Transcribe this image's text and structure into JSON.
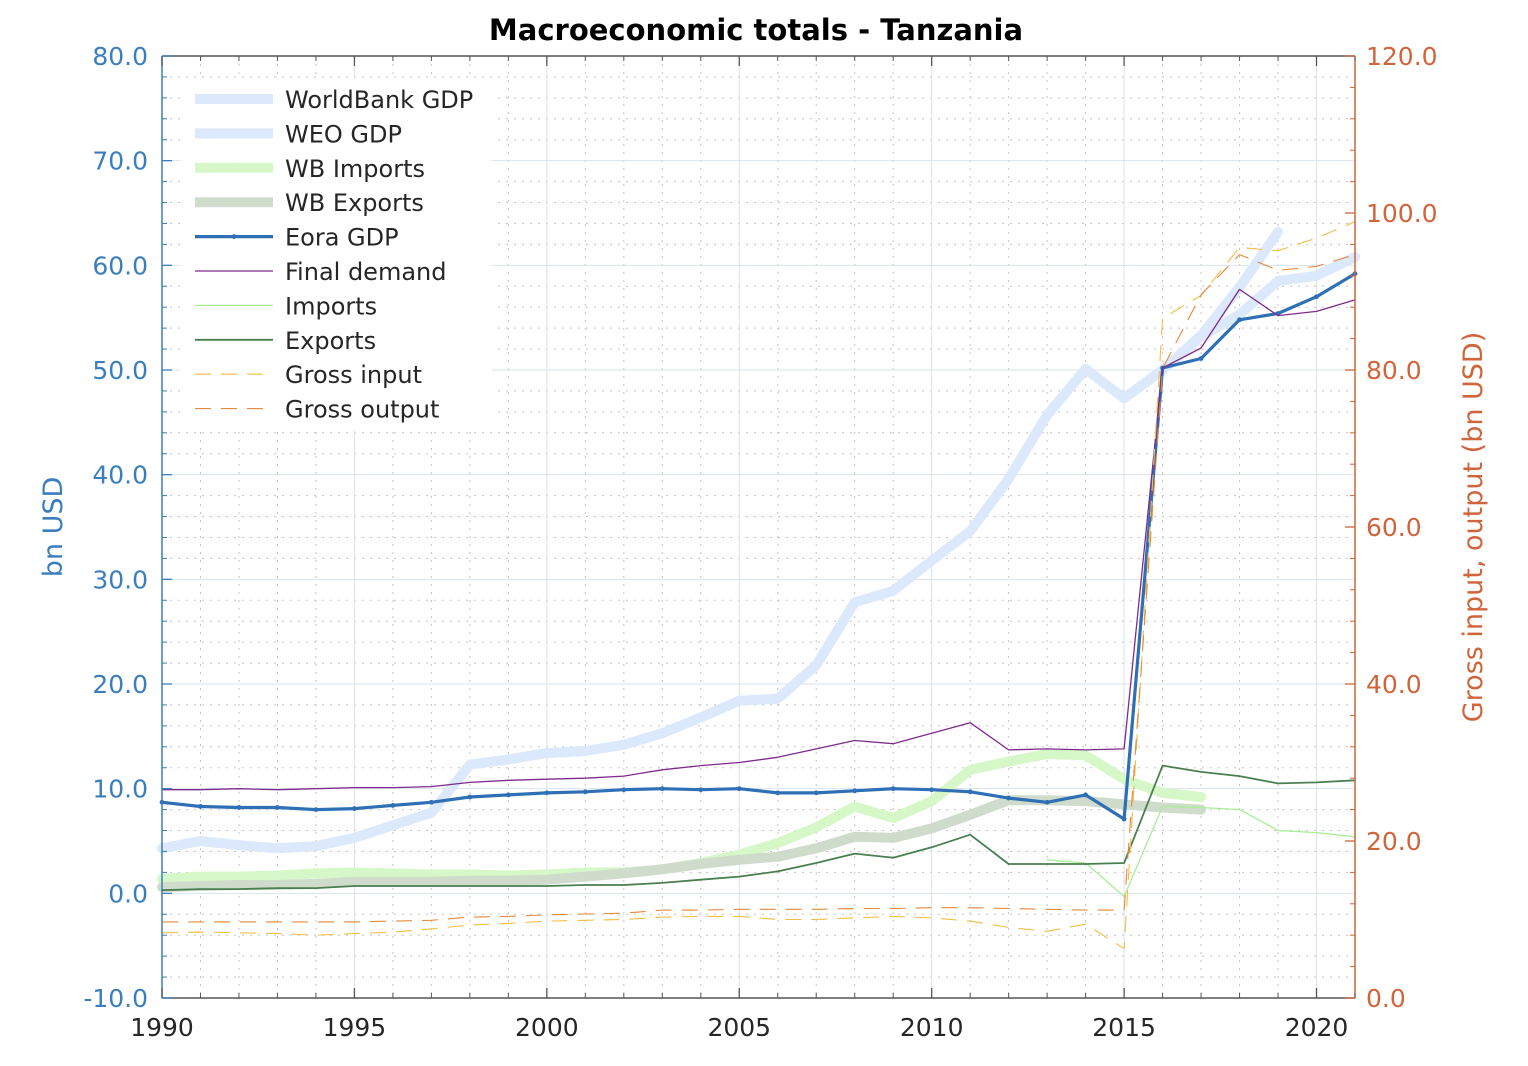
{
  "chart_data": {
    "type": "line",
    "title": "Macroeconomic totals - Tanzania",
    "xlabel": "",
    "ylabel": "bn USD",
    "y2label": "Gross input, output (bn USD)",
    "xlim": [
      1990,
      2021
    ],
    "ylim": [
      -10,
      80
    ],
    "y2lim": [
      0,
      120
    ],
    "x_ticks": [
      1990,
      1995,
      2000,
      2005,
      2010,
      2015,
      2020
    ],
    "x_tick_labels": [
      "1990",
      "1995",
      "2000",
      "2005",
      "2010",
      "2015",
      "2020"
    ],
    "y_ticks": [
      -10,
      0,
      10,
      20,
      30,
      40,
      50,
      60,
      70,
      80
    ],
    "y_tick_labels": [
      "-10.0",
      "0.0",
      "10.0",
      "20.0",
      "30.0",
      "40.0",
      "50.0",
      "60.0",
      "70.0",
      "80.0"
    ],
    "y2_ticks": [
      0,
      20,
      40,
      60,
      80,
      100,
      120
    ],
    "y2_tick_labels": [
      "0.0",
      "20.0",
      "40.0",
      "60.0",
      "80.0",
      "100.0",
      "120.0"
    ],
    "grid": true,
    "minor_grid": true,
    "legend_position": "top-left",
    "series": [
      {
        "name": "WorldBank GDP",
        "axis": "left",
        "color": "#dce8fb",
        "width": 10,
        "dash": "",
        "x": [
          1990,
          1991,
          1992,
          1993,
          1994,
          1995,
          1996,
          1997,
          1998,
          1999,
          2000,
          2001,
          2002,
          2003,
          2004,
          2005,
          2006,
          2007,
          2008,
          2009,
          2010,
          2011,
          2012,
          2013,
          2014,
          2015,
          2016,
          2017,
          2018,
          2019
        ],
        "y": [
          4.3,
          5.0,
          4.6,
          4.3,
          4.5,
          5.3,
          6.5,
          7.7,
          12.3,
          12.8,
          13.4,
          13.6,
          14.2,
          15.3,
          16.8,
          18.4,
          18.6,
          21.8,
          27.8,
          28.9,
          31.8,
          34.6,
          39.6,
          45.7,
          50.1,
          47.3,
          50.0,
          53.3,
          57.9,
          63.2
        ]
      },
      {
        "name": "WEO GDP",
        "axis": "left",
        "color": "#dce8fb",
        "width": 10,
        "dash": "",
        "x": [
          2015,
          2016,
          2017,
          2018,
          2019,
          2020,
          2021
        ],
        "y": [
          47.3,
          50.0,
          53.2,
          55.3,
          58.5,
          59.0,
          60.8
        ]
      },
      {
        "name": "WB Imports",
        "axis": "left",
        "color": "#d6f7c7",
        "width": 10,
        "dash": "",
        "x": [
          1990,
          1991,
          1992,
          1993,
          1994,
          1995,
          1996,
          1997,
          1998,
          1999,
          2000,
          2001,
          2002,
          2003,
          2004,
          2005,
          2006,
          2007,
          2008,
          2009,
          2010,
          2011,
          2012,
          2013,
          2014,
          2015,
          2016,
          2017
        ],
        "y": [
          1.4,
          1.6,
          1.6,
          1.7,
          1.9,
          2.0,
          1.9,
          1.8,
          1.8,
          1.7,
          1.8,
          2.0,
          2.0,
          2.3,
          2.9,
          3.7,
          4.8,
          6.3,
          8.3,
          7.2,
          8.8,
          11.8,
          12.6,
          13.3,
          13.2,
          10.9,
          9.6,
          9.2
        ]
      },
      {
        "name": "WB Exports",
        "axis": "left",
        "color": "#cfdccb",
        "width": 10,
        "dash": "",
        "x": [
          1990,
          1991,
          1992,
          1993,
          1994,
          1995,
          1996,
          1997,
          1998,
          1999,
          2000,
          2001,
          2002,
          2003,
          2004,
          2005,
          2006,
          2007,
          2008,
          2009,
          2010,
          2011,
          2012,
          2013,
          2014,
          2015,
          2016,
          2017
        ],
        "y": [
          0.6,
          0.7,
          0.8,
          0.8,
          0.9,
          1.1,
          1.1,
          1.1,
          1.2,
          1.2,
          1.3,
          1.6,
          1.9,
          2.3,
          2.8,
          3.2,
          3.5,
          4.3,
          5.4,
          5.3,
          6.2,
          7.5,
          8.9,
          8.9,
          8.8,
          8.5,
          8.2,
          8.0
        ]
      },
      {
        "name": "Eora GDP",
        "axis": "left",
        "color": "#2e6fb5",
        "width": 3.2,
        "dash": "",
        "markers": true,
        "x": [
          1990,
          1991,
          1992,
          1993,
          1994,
          1995,
          1996,
          1997,
          1998,
          1999,
          2000,
          2001,
          2002,
          2003,
          2004,
          2005,
          2006,
          2007,
          2008,
          2009,
          2010,
          2011,
          2012,
          2013,
          2014,
          2015,
          2016,
          2017,
          2018,
          2019,
          2020,
          2021
        ],
        "y": [
          8.7,
          8.3,
          8.2,
          8.2,
          8.0,
          8.1,
          8.4,
          8.7,
          9.2,
          9.4,
          9.6,
          9.7,
          9.9,
          10.0,
          9.9,
          10.0,
          9.6,
          9.6,
          9.8,
          10.0,
          9.9,
          9.7,
          9.1,
          8.7,
          9.4,
          7.1,
          50.2,
          51.1,
          54.8,
          55.4,
          57.0,
          59.2
        ]
      },
      {
        "name": "Final demand",
        "axis": "left",
        "color": "#7f2a8c",
        "width": 1.3,
        "dash": "",
        "x": [
          1990,
          1991,
          1992,
          1993,
          1994,
          1995,
          1996,
          1997,
          1998,
          1999,
          2000,
          2001,
          2002,
          2003,
          2004,
          2005,
          2006,
          2007,
          2008,
          2009,
          2010,
          2011,
          2012,
          2013,
          2014,
          2015,
          2016,
          2017,
          2018,
          2019,
          2020,
          2021
        ],
        "y": [
          9.9,
          9.9,
          10.0,
          9.9,
          10.0,
          10.1,
          10.1,
          10.2,
          10.6,
          10.8,
          10.9,
          11.0,
          11.2,
          11.8,
          12.2,
          12.5,
          13.0,
          13.8,
          14.6,
          14.3,
          15.3,
          16.3,
          13.7,
          13.8,
          13.7,
          13.8,
          50.2,
          52.1,
          57.7,
          55.2,
          55.6,
          56.7
        ]
      },
      {
        "name": "Imports",
        "axis": "left",
        "color": "#a8ee98",
        "width": 1.3,
        "dash": "",
        "x": [
          2013,
          2014,
          2015,
          2016,
          2017,
          2018,
          2019,
          2020,
          2021
        ],
        "y": [
          3.2,
          2.9,
          -0.3,
          8.3,
          8.2,
          8.0,
          6.0,
          5.8,
          5.4
        ]
      },
      {
        "name": "Exports",
        "axis": "left",
        "color": "#4a7f4f",
        "width": 1.8,
        "dash": "",
        "x": [
          1990,
          1991,
          1992,
          1993,
          1994,
          1995,
          1996,
          1997,
          1998,
          1999,
          2000,
          2001,
          2002,
          2003,
          2004,
          2005,
          2006,
          2007,
          2008,
          2009,
          2010,
          2011,
          2012,
          2013,
          2014,
          2015,
          2016,
          2017,
          2018,
          2019,
          2020,
          2021
        ],
        "y": [
          0.3,
          0.4,
          0.4,
          0.5,
          0.5,
          0.7,
          0.7,
          0.7,
          0.7,
          0.7,
          0.7,
          0.8,
          0.8,
          1.0,
          1.3,
          1.6,
          2.1,
          2.9,
          3.8,
          3.4,
          4.4,
          5.6,
          2.8,
          2.8,
          2.8,
          2.9,
          12.2,
          11.6,
          11.2,
          10.5,
          10.6,
          10.8
        ]
      },
      {
        "name": "Gross input",
        "axis": "right",
        "color": "#f2be45",
        "width": 1.1,
        "dash": "16 10",
        "x": [
          1990,
          1991,
          1992,
          1993,
          1994,
          1995,
          1996,
          1997,
          1998,
          1999,
          2000,
          2001,
          2002,
          2003,
          2004,
          2005,
          2006,
          2007,
          2008,
          2009,
          2010,
          2011,
          2012,
          2013,
          2014,
          2015,
          2016,
          2017,
          2018,
          2019,
          2020,
          2021
        ],
        "y": [
          8.3,
          8.4,
          8.3,
          8.2,
          8.0,
          8.2,
          8.4,
          8.8,
          9.3,
          9.5,
          9.8,
          9.9,
          10.0,
          10.3,
          10.4,
          10.4,
          10.0,
          10.0,
          10.2,
          10.4,
          10.2,
          9.8,
          9.0,
          8.5,
          9.4,
          6.3,
          86.6,
          89.5,
          95.6,
          95.2,
          96.8,
          98.9
        ]
      },
      {
        "name": "Gross output",
        "axis": "right",
        "color": "#e58a3a",
        "width": 1.1,
        "dash": "16 10",
        "x": [
          1990,
          1991,
          1992,
          1993,
          1994,
          1995,
          1996,
          1997,
          1998,
          1999,
          2000,
          2001,
          2002,
          2003,
          2004,
          2005,
          2006,
          2007,
          2008,
          2009,
          2010,
          2011,
          2012,
          2013,
          2014,
          2015,
          2016,
          2017,
          2018,
          2019,
          2020,
          2021
        ],
        "y": [
          9.7,
          9.7,
          9.7,
          9.7,
          9.7,
          9.7,
          9.8,
          9.9,
          10.3,
          10.4,
          10.6,
          10.7,
          10.8,
          11.2,
          11.2,
          11.3,
          11.3,
          11.3,
          11.4,
          11.4,
          11.5,
          11.5,
          11.4,
          11.3,
          11.2,
          11.2,
          80.2,
          89.6,
          94.7,
          92.7,
          93.2,
          94.7
        ]
      }
    ]
  }
}
